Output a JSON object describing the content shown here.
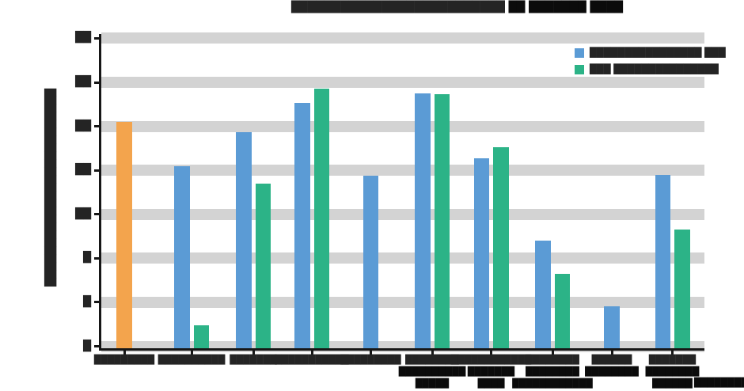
{
  "note": "All text in the source screenshot is illegible (anti-aliased near-black blocks / redacted-looking text). Full-block glyphs reproduce the visible blobs; semantic strings are unrecoverable from the pixels.",
  "title": {
    "part1": "██████████████████████████",
    "part2": " ██ ███████ ████"
  },
  "y_axis": {
    "title_blocks": "█████████████████████████",
    "ticks": [
      {
        "value": 28,
        "blocks": "██"
      },
      {
        "value": 24,
        "blocks": "██"
      },
      {
        "value": 20,
        "blocks": "██"
      },
      {
        "value": 16,
        "blocks": "██"
      },
      {
        "value": 12,
        "blocks": "██"
      },
      {
        "value": 8,
        "blocks": "█"
      },
      {
        "value": 4,
        "blocks": "█"
      },
      {
        "value": 0,
        "blocks": "█"
      }
    ]
  },
  "x_axis": {
    "categories": [
      {
        "lines": [
          "█████████"
        ]
      },
      {
        "lines": [
          "██████████"
        ]
      },
      {
        "lines": [
          "███████"
        ]
      },
      {
        "lines": [
          "███████████"
        ]
      },
      {
        "lines": [
          "█████████"
        ]
      },
      {
        "lines": [
          "████████",
          "██████████",
          "█████"
        ]
      },
      {
        "lines": [
          "████████████",
          "███████",
          "████"
        ]
      },
      {
        "lines": [
          "████████",
          "████████",
          "████████████"
        ]
      },
      {
        "lines": [
          "██████",
          "████████"
        ]
      },
      {
        "lines": [
          "███████",
          "████████",
          "██████"
        ]
      }
    ]
  },
  "legend": {
    "items": [
      {
        "label": "████████████████ ███",
        "color": "#5b9bd5"
      },
      {
        "label": "███ ███████████████",
        "color": "#2cb387"
      }
    ]
  },
  "footnote_blocks": "████████",
  "colors": {
    "blue": "#5b9bd5",
    "green": "#2cb387",
    "orange": "#f3a44d",
    "gridline": "#d3d3d3",
    "text_blob": "#242424",
    "axis": "#161616",
    "background": "#ffffff"
  },
  "chart_data": {
    "type": "bar",
    "title": "(illegible — redacted-style block text)",
    "xlabel": "",
    "ylabel": "(illegible rotated block text)",
    "categories": [
      "cat-01",
      "cat-02",
      "cat-03",
      "cat-04",
      "cat-05",
      "cat-06",
      "cat-07",
      "cat-08",
      "cat-09",
      "cat-10"
    ],
    "series": [
      {
        "name": "series-blue",
        "color": "#5b9bd5",
        "values": [
          null,
          16.4,
          19.5,
          22.1,
          15.5,
          23.0,
          17.1,
          9.6,
          3.6,
          15.6
        ]
      },
      {
        "name": "series-green",
        "color": "#2cb387",
        "values": [
          null,
          1.9,
          14.8,
          23.4,
          null,
          22.9,
          18.1,
          6.6,
          null,
          10.6
        ]
      },
      {
        "name": "highlight-orange",
        "color": "#f3a44d",
        "values": [
          20.4,
          null,
          null,
          null,
          null,
          null,
          null,
          null,
          null,
          null
        ]
      }
    ],
    "ylim": [
      0,
      28
    ],
    "yticks": [
      0,
      4,
      8,
      12,
      16,
      20,
      24,
      28
    ],
    "grid": true,
    "gridline_style": "thick light-gray horizontal bands",
    "legend_position": "upper right",
    "values_note": "Values estimated from gridlines (8 lines, assumed 0–28 step 4); single-bar categories are drawn centered."
  }
}
